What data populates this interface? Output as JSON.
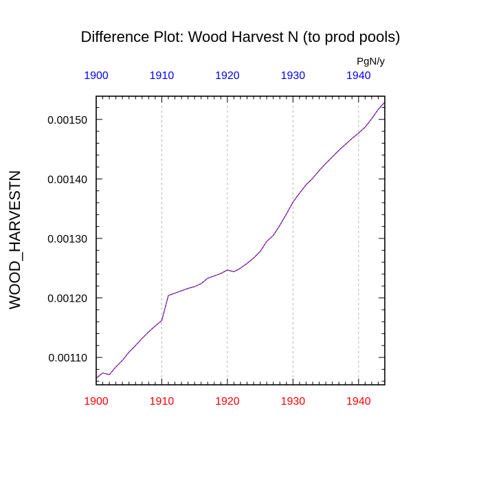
{
  "chart_data": {
    "type": "line",
    "title": "Difference Plot: Wood Harvest N (to prod pools)",
    "units": "PgN/y",
    "ylabel": "WOOD_HARVESTN",
    "xlabel": "",
    "xlim": [
      1900,
      1944
    ],
    "ylim": [
      0.001054,
      0.001539
    ],
    "xticks": [
      1900,
      1910,
      1920,
      1930,
      1940
    ],
    "yticks": [
      0.0011,
      0.0012,
      0.0013,
      0.0014,
      0.0015
    ],
    "ytick_labels": [
      "0.00110",
      "0.00120",
      "0.00130",
      "0.00140",
      "0.00150"
    ],
    "top_axis_color": "#0000ff",
    "bottom_axis_color": "#ff0000",
    "grid_x": true,
    "series": [
      {
        "color": "#ff0000",
        "dash": "dashed",
        "x": [
          1900,
          1901,
          1902,
          1903,
          1904,
          1905,
          1906,
          1907,
          1908,
          1909,
          1910,
          1911,
          1912,
          1913,
          1914,
          1915,
          1916,
          1917,
          1918,
          1919,
          1920,
          1921,
          1922,
          1923,
          1924,
          1925,
          1926,
          1927,
          1928,
          1929,
          1930,
          1931,
          1932,
          1933,
          1934,
          1935,
          1936,
          1937,
          1938,
          1939,
          1940,
          1941,
          1942,
          1943,
          1944
        ],
        "values": [
          0.001065,
          0.001074,
          0.001071,
          0.001084,
          0.001095,
          0.001109,
          0.00112,
          0.001132,
          0.001143,
          0.001153,
          0.001162,
          0.001204,
          0.001208,
          0.001212,
          0.001216,
          0.001219,
          0.001224,
          0.001233,
          0.001237,
          0.001241,
          0.001247,
          0.001244,
          0.00125,
          0.001258,
          0.001267,
          0.001278,
          0.001295,
          0.001305,
          0.001322,
          0.001341,
          0.001361,
          0.001376,
          0.00139,
          0.001401,
          0.001414,
          0.001426,
          0.001437,
          0.001448,
          0.001458,
          0.001468,
          0.001477,
          0.001487,
          0.001501,
          0.001517,
          0.001529
        ]
      },
      {
        "color": "#0000ff",
        "dash": "dashed",
        "x": [
          1900,
          1901,
          1902,
          1903,
          1904,
          1905,
          1906,
          1907,
          1908,
          1909,
          1910,
          1911,
          1912,
          1913,
          1914,
          1915,
          1916,
          1917,
          1918,
          1919,
          1920,
          1921,
          1922,
          1923,
          1924,
          1925,
          1926,
          1927,
          1928,
          1929,
          1930,
          1931,
          1932,
          1933,
          1934,
          1935,
          1936,
          1937,
          1938,
          1939,
          1940,
          1941,
          1942,
          1943,
          1944
        ],
        "values": [
          0.001065,
          0.001074,
          0.001071,
          0.001084,
          0.001095,
          0.001109,
          0.00112,
          0.001132,
          0.001143,
          0.001153,
          0.001162,
          0.001204,
          0.001208,
          0.001212,
          0.001216,
          0.001219,
          0.001224,
          0.001233,
          0.001237,
          0.001241,
          0.001247,
          0.001244,
          0.00125,
          0.001258,
          0.001267,
          0.001278,
          0.001295,
          0.001305,
          0.001322,
          0.001341,
          0.001361,
          0.001376,
          0.00139,
          0.001401,
          0.001414,
          0.001426,
          0.001437,
          0.001448,
          0.001458,
          0.001468,
          0.001477,
          0.001487,
          0.001501,
          0.001517,
          0.001529
        ]
      }
    ]
  }
}
